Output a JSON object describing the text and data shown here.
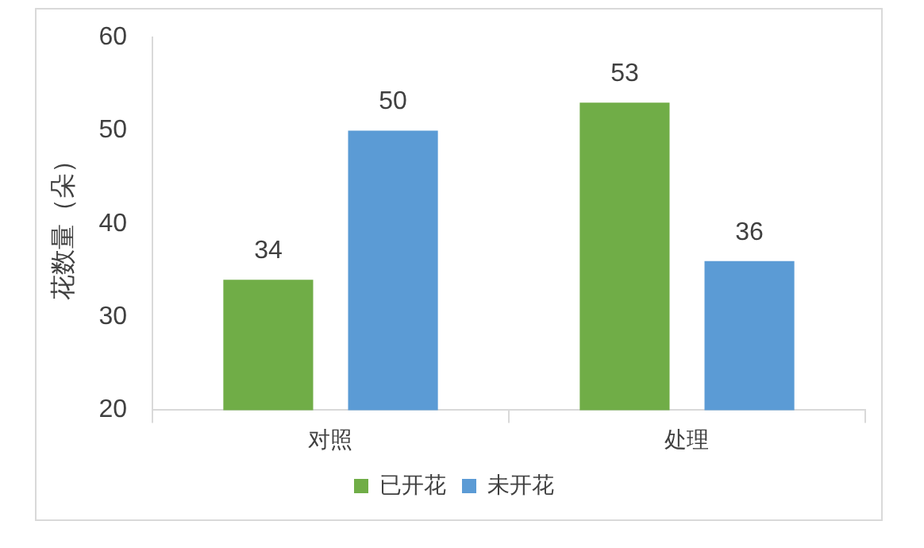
{
  "chart_data": {
    "type": "bar",
    "ylabel": "花数量（朵）",
    "categories": [
      "对照",
      "处理"
    ],
    "series": [
      {
        "name": "已开花",
        "color": "#70ad47",
        "values": [
          34,
          53
        ]
      },
      {
        "name": "未开花",
        "color": "#5b9bd5",
        "values": [
          50,
          36
        ]
      }
    ],
    "ylim": [
      20,
      60
    ],
    "yticks": [
      20,
      30,
      40,
      50,
      60
    ],
    "grid": false,
    "legend": "bottom",
    "data_labels": true
  }
}
